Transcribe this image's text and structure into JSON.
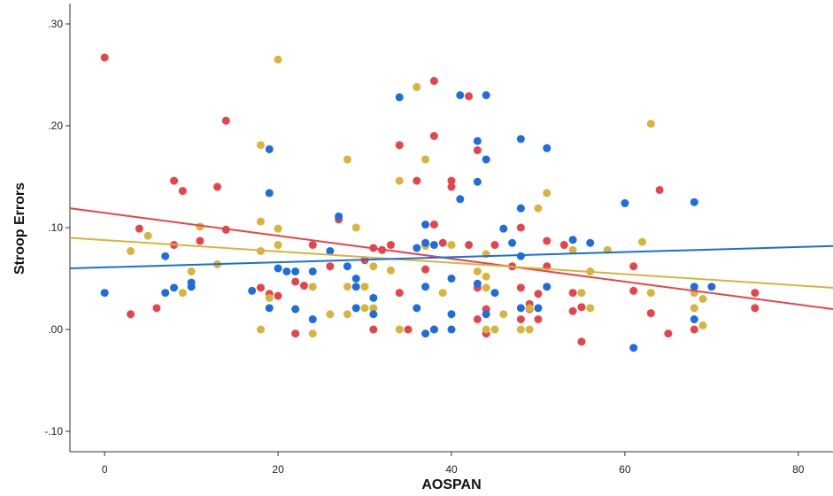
{
  "chart_data": {
    "type": "scatter",
    "title": "",
    "xlabel": "AOSPAN",
    "ylabel": "Stroop Errors",
    "xlim": [
      -4,
      84
    ],
    "ylim": [
      -0.12,
      0.32
    ],
    "xticks": [
      0,
      20,
      40,
      60,
      80
    ],
    "xtick_labels": [
      "0",
      "20",
      "40",
      "60",
      "80"
    ],
    "yticks": [
      -0.1,
      0.0,
      0.1,
      0.2,
      0.3
    ],
    "ytick_labels": [
      "-.10",
      ".00",
      ".10",
      ".20",
      ".30"
    ],
    "grid": false,
    "legend": "none",
    "colors": {
      "red": "#e8434a",
      "gold": "#d9b43a",
      "blue": "#1a6ee0"
    },
    "series": [
      {
        "color": "#e8434a",
        "fit_line": {
          "x": [
            -4,
            84
          ],
          "y": [
            0.119,
            0.02
          ]
        },
        "points": [
          [
            0,
            0.267
          ],
          [
            3,
            0.015
          ],
          [
            4,
            0.099
          ],
          [
            6,
            0.021
          ],
          [
            8,
            0.146
          ],
          [
            8,
            0.083
          ],
          [
            9,
            0.136
          ],
          [
            11,
            0.087
          ],
          [
            13,
            0.14
          ],
          [
            14,
            0.205
          ],
          [
            14,
            0.098
          ],
          [
            18,
            0.041
          ],
          [
            19,
            0.035
          ],
          [
            20,
            0.033
          ],
          [
            22,
            0.047
          ],
          [
            22,
            -0.004
          ],
          [
            23,
            0.043
          ],
          [
            24,
            0.083
          ],
          [
            26,
            0.062
          ],
          [
            27,
            0.108
          ],
          [
            30,
            0.068
          ],
          [
            31,
            0.08
          ],
          [
            31,
            0.0
          ],
          [
            32,
            0.078
          ],
          [
            33,
            0.083
          ],
          [
            34,
            0.181
          ],
          [
            34,
            0.036
          ],
          [
            35,
            0.0
          ],
          [
            36,
            0.146
          ],
          [
            37,
            0.059
          ],
          [
            38,
            0.244
          ],
          [
            38,
            0.19
          ],
          [
            38,
            0.103
          ],
          [
            38,
            0.0
          ],
          [
            39,
            0.085
          ],
          [
            40,
            0.146
          ],
          [
            40,
            0.14
          ],
          [
            42,
            0.229
          ],
          [
            42,
            0.083
          ],
          [
            43,
            0.176
          ],
          [
            43,
            0.041
          ],
          [
            43,
            0.01
          ],
          [
            44,
            -0.004
          ],
          [
            44,
            0.02
          ],
          [
            45,
            0.083
          ],
          [
            47,
            0.062
          ],
          [
            48,
            0.1
          ],
          [
            48,
            0.041
          ],
          [
            48,
            0.01
          ],
          [
            49,
            0.025
          ],
          [
            49,
            0.02
          ],
          [
            50,
            0.035
          ],
          [
            50,
            0.01
          ],
          [
            51,
            0.087
          ],
          [
            51,
            0.062
          ],
          [
            53,
            0.083
          ],
          [
            54,
            0.036
          ],
          [
            54,
            0.018
          ],
          [
            55,
            0.022
          ],
          [
            55,
            -0.012
          ],
          [
            61,
            0.062
          ],
          [
            61,
            0.038
          ],
          [
            63,
            0.016
          ],
          [
            64,
            0.137
          ],
          [
            65,
            -0.004
          ],
          [
            68,
            0.0
          ],
          [
            75,
            0.036
          ],
          [
            75,
            0.021
          ]
        ]
      },
      {
        "color": "#d9b43a",
        "fit_line": {
          "x": [
            -4,
            84
          ],
          "y": [
            0.09,
            0.041
          ]
        },
        "points": [
          [
            3,
            0.077
          ],
          [
            5,
            0.092
          ],
          [
            9,
            0.036
          ],
          [
            10,
            0.057
          ],
          [
            11,
            0.101
          ],
          [
            13,
            0.064
          ],
          [
            18,
            0.181
          ],
          [
            18,
            0.106
          ],
          [
            18,
            0.077
          ],
          [
            18,
            0.0
          ],
          [
            19,
            0.031
          ],
          [
            20,
            0.265
          ],
          [
            20,
            0.099
          ],
          [
            20,
            0.083
          ],
          [
            24,
            0.042
          ],
          [
            24,
            -0.004
          ],
          [
            26,
            0.015
          ],
          [
            28,
            0.167
          ],
          [
            28,
            0.042
          ],
          [
            28,
            0.015
          ],
          [
            29,
            0.1
          ],
          [
            30,
            0.042
          ],
          [
            30,
            0.021
          ],
          [
            31,
            0.062
          ],
          [
            31,
            0.021
          ],
          [
            33,
            0.058
          ],
          [
            34,
            0.146
          ],
          [
            34,
            0.0
          ],
          [
            36,
            0.238
          ],
          [
            37,
            0.167
          ],
          [
            37,
            0.082
          ],
          [
            39,
            0.036
          ],
          [
            40,
            0.083
          ],
          [
            43,
            0.057
          ],
          [
            44,
            0.074
          ],
          [
            44,
            0.052
          ],
          [
            44,
            0.041
          ],
          [
            44,
            0.0
          ],
          [
            45,
            0.0
          ],
          [
            46,
            0.015
          ],
          [
            48,
            0.0
          ],
          [
            49,
            0.021
          ],
          [
            49,
            0.0
          ],
          [
            50,
            0.119
          ],
          [
            51,
            0.134
          ],
          [
            54,
            0.078
          ],
          [
            55,
            0.036
          ],
          [
            56,
            0.057
          ],
          [
            56,
            0.021
          ],
          [
            58,
            0.078
          ],
          [
            62,
            0.086
          ],
          [
            63,
            0.202
          ],
          [
            63,
            0.036
          ],
          [
            68,
            0.036
          ],
          [
            68,
            0.021
          ],
          [
            69,
            0.03
          ],
          [
            69,
            0.004
          ]
        ]
      },
      {
        "color": "#1a6ee0",
        "fit_line": {
          "x": [
            -4,
            84
          ],
          "y": [
            0.06,
            0.082
          ]
        },
        "points": [
          [
            0,
            0.036
          ],
          [
            7,
            0.072
          ],
          [
            7,
            0.036
          ],
          [
            8,
            0.041
          ],
          [
            10,
            0.046
          ],
          [
            10,
            0.042
          ],
          [
            17,
            0.038
          ],
          [
            19,
            0.177
          ],
          [
            19,
            0.134
          ],
          [
            19,
            0.021
          ],
          [
            20,
            0.06
          ],
          [
            21,
            0.057
          ],
          [
            22,
            0.057
          ],
          [
            22,
            0.02
          ],
          [
            24,
            0.057
          ],
          [
            24,
            0.01
          ],
          [
            26,
            0.077
          ],
          [
            27,
            0.111
          ],
          [
            28,
            0.062
          ],
          [
            29,
            0.05
          ],
          [
            29,
            0.042
          ],
          [
            29,
            0.021
          ],
          [
            31,
            0.031
          ],
          [
            31,
            0.015
          ],
          [
            34,
            0.228
          ],
          [
            36,
            0.08
          ],
          [
            36,
            0.021
          ],
          [
            37,
            0.103
          ],
          [
            37,
            0.085
          ],
          [
            37,
            0.042
          ],
          [
            37,
            -0.004
          ],
          [
            38,
            0.083
          ],
          [
            38,
            0.0
          ],
          [
            40,
            0.05
          ],
          [
            40,
            0.015
          ],
          [
            40,
            0.0
          ],
          [
            41,
            0.23
          ],
          [
            41,
            0.128
          ],
          [
            43,
            0.185
          ],
          [
            43,
            0.145
          ],
          [
            43,
            0.045
          ],
          [
            44,
            0.23
          ],
          [
            44,
            0.167
          ],
          [
            44,
            0.015
          ],
          [
            45,
            0.036
          ],
          [
            46,
            0.099
          ],
          [
            47,
            0.085
          ],
          [
            48,
            0.187
          ],
          [
            48,
            0.119
          ],
          [
            48,
            0.072
          ],
          [
            48,
            0.021
          ],
          [
            50,
            0.021
          ],
          [
            51,
            0.178
          ],
          [
            51,
            0.042
          ],
          [
            54,
            0.088
          ],
          [
            56,
            0.085
          ],
          [
            60,
            0.124
          ],
          [
            61,
            -0.018
          ],
          [
            68,
            0.125
          ],
          [
            68,
            0.042
          ],
          [
            68,
            0.01
          ],
          [
            70,
            0.042
          ]
        ]
      }
    ]
  }
}
